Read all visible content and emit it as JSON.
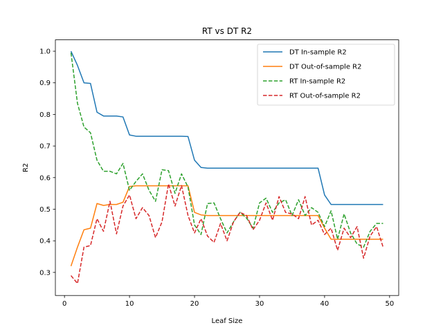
{
  "chart_data": {
    "type": "line",
    "title": "RT vs DT R2",
    "xlabel": "Leaf Size",
    "ylabel": "R2",
    "xlim": [
      -1.4,
      51.4
    ],
    "ylim": [
      0.227,
      1.036
    ],
    "xticks": [
      0,
      10,
      20,
      30,
      40,
      50
    ],
    "yticks": [
      0.3,
      0.4,
      0.5,
      0.6,
      0.7,
      0.8,
      0.9,
      1.0
    ],
    "xtick_labels": [
      "0",
      "10",
      "20",
      "30",
      "40",
      "50"
    ],
    "ytick_labels": [
      "0.3",
      "0.4",
      "0.5",
      "0.6",
      "0.7",
      "0.8",
      "0.9",
      "1.0"
    ],
    "grid": false,
    "legend_position": "top-right",
    "x": [
      1,
      2,
      3,
      4,
      5,
      6,
      7,
      8,
      9,
      10,
      11,
      12,
      13,
      14,
      15,
      16,
      17,
      18,
      19,
      20,
      21,
      22,
      23,
      24,
      25,
      26,
      27,
      28,
      29,
      30,
      31,
      32,
      33,
      34,
      35,
      36,
      37,
      38,
      39,
      40,
      41,
      42,
      43,
      44,
      45,
      46,
      47,
      48,
      49
    ],
    "series": [
      {
        "name": "DT In-sample R2",
        "color": "#1f77b4",
        "dash": "solid",
        "values": [
          1.0,
          0.955,
          0.9,
          0.898,
          0.807,
          0.795,
          0.795,
          0.795,
          0.792,
          0.735,
          0.731,
          0.731,
          0.731,
          0.731,
          0.731,
          0.731,
          0.731,
          0.731,
          0.73,
          0.655,
          0.632,
          0.63,
          0.63,
          0.63,
          0.63,
          0.63,
          0.63,
          0.63,
          0.63,
          0.63,
          0.63,
          0.63,
          0.63,
          0.63,
          0.63,
          0.63,
          0.63,
          0.63,
          0.63,
          0.545,
          0.515,
          0.515,
          0.515,
          0.515,
          0.515,
          0.515,
          0.515,
          0.515,
          0.515
        ]
      },
      {
        "name": "DT Out-of-sample R2",
        "color": "#ff7f0e",
        "dash": "solid",
        "values": [
          0.32,
          0.38,
          0.435,
          0.44,
          0.518,
          0.512,
          0.515,
          0.515,
          0.522,
          0.572,
          0.574,
          0.574,
          0.574,
          0.574,
          0.574,
          0.574,
          0.574,
          0.574,
          0.574,
          0.49,
          0.482,
          0.48,
          0.48,
          0.48,
          0.48,
          0.48,
          0.48,
          0.48,
          0.48,
          0.48,
          0.48,
          0.48,
          0.48,
          0.48,
          0.48,
          0.48,
          0.48,
          0.48,
          0.48,
          0.44,
          0.405,
          0.405,
          0.405,
          0.405,
          0.405,
          0.405,
          0.405,
          0.405,
          0.405
        ]
      },
      {
        "name": "RT In-sample R2",
        "color": "#2ca02c",
        "dash": "dashed",
        "values": [
          0.995,
          0.835,
          0.76,
          0.742,
          0.655,
          0.62,
          0.62,
          0.612,
          0.645,
          0.56,
          0.588,
          0.612,
          0.56,
          0.525,
          0.625,
          0.622,
          0.55,
          0.612,
          0.57,
          0.45,
          0.42,
          0.518,
          0.52,
          0.47,
          0.425,
          0.46,
          0.49,
          0.472,
          0.44,
          0.52,
          0.535,
          0.49,
          0.52,
          0.53,
          0.48,
          0.53,
          0.48,
          0.505,
          0.49,
          0.445,
          0.495,
          0.405,
          0.485,
          0.425,
          0.39,
          0.38,
          0.43,
          0.455,
          0.455
        ]
      },
      {
        "name": "RT Out-of-sample R2",
        "color": "#d62728",
        "dash": "dashed",
        "values": [
          0.29,
          0.265,
          0.38,
          0.385,
          0.47,
          0.43,
          0.525,
          0.422,
          0.51,
          0.545,
          0.47,
          0.505,
          0.48,
          0.41,
          0.46,
          0.58,
          0.51,
          0.575,
          0.48,
          0.425,
          0.47,
          0.415,
          0.395,
          0.455,
          0.4,
          0.46,
          0.49,
          0.48,
          0.435,
          0.465,
          0.52,
          0.465,
          0.54,
          0.49,
          0.485,
          0.47,
          0.54,
          0.45,
          0.465,
          0.42,
          0.44,
          0.37,
          0.44,
          0.41,
          0.445,
          0.345,
          0.415,
          0.445,
          0.38
        ]
      }
    ]
  }
}
